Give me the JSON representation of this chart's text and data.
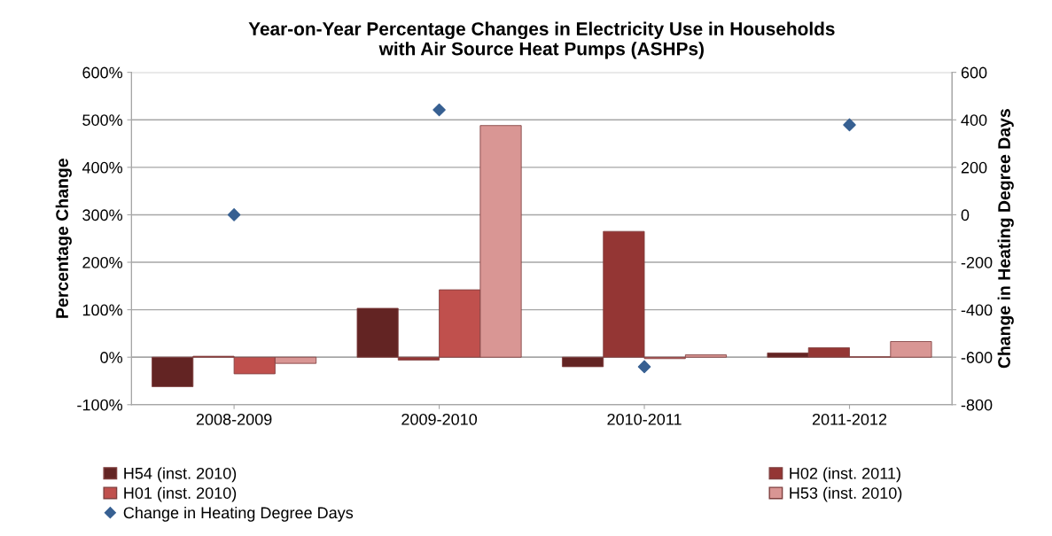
{
  "chart_data": {
    "type": "bar",
    "title": "Year-on-Year Percentage Changes in Electricity Use in Households\nwith Air Source Heat Pumps (ASHPs)",
    "categories": [
      "2008-2009",
      "2009-2010",
      "2010-2011",
      "2011-2012"
    ],
    "ylabel": "Percentage Change",
    "y2label": "Change in Heating Degree Days",
    "ylim": [
      -100,
      600
    ],
    "yticks": [
      {
        "value": -100,
        "label": "-100%"
      },
      {
        "value": 0,
        "label": "0%"
      },
      {
        "value": 100,
        "label": "100%"
      },
      {
        "value": 200,
        "label": "200%"
      },
      {
        "value": 300,
        "label": "300%"
      },
      {
        "value": 400,
        "label": "400%"
      },
      {
        "value": 500,
        "label": "500%"
      },
      {
        "value": 600,
        "label": "600%"
      }
    ],
    "y2lim": [
      -800,
      600
    ],
    "y2ticks": [
      -800,
      -600,
      -400,
      -200,
      0,
      200,
      400,
      600
    ],
    "grid": "y",
    "legend": "bottom",
    "series": [
      {
        "name": "H54 (inst. 2010)",
        "color": "#632423",
        "values": [
          -62,
          103,
          -20,
          9
        ]
      },
      {
        "name": "H02 (inst. 2011)",
        "color": "#943634",
        "values": [
          2,
          -6,
          265,
          20
        ]
      },
      {
        "name": "H01 (inst. 2010)",
        "color": "#c0504d",
        "values": [
          -35,
          142,
          -3,
          1
        ]
      },
      {
        "name": "H53 (inst. 2010)",
        "color": "#d99694",
        "values": [
          -13,
          488,
          5,
          33
        ]
      },
      {
        "name": "Change in Heating Degree Days",
        "color": "#376092",
        "type": "scatter",
        "axis": "y2",
        "marker": "diamond",
        "values": [
          0,
          442,
          -640,
          379
        ]
      }
    ]
  }
}
